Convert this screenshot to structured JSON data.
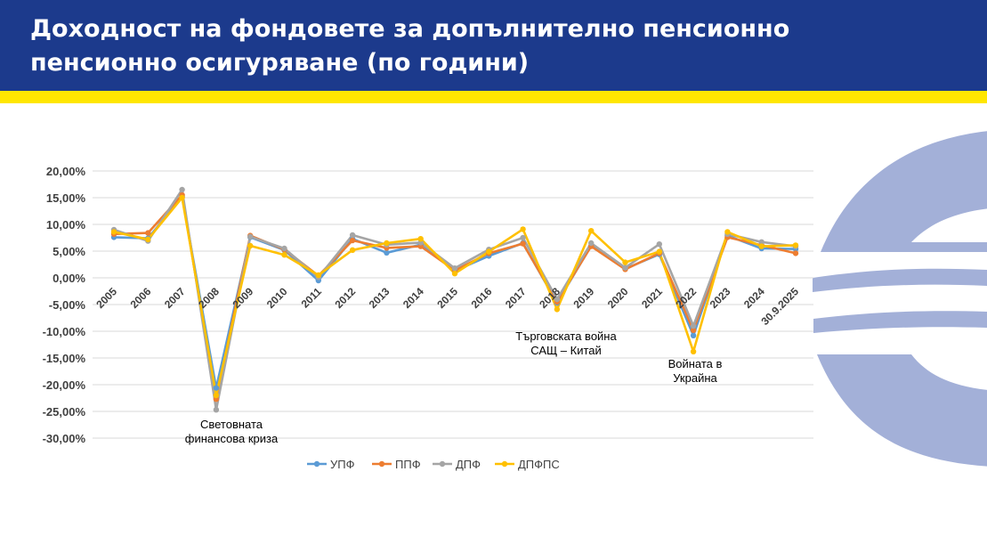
{
  "header": {
    "title_line1": "Доходност на фондовете за допълнително пенсионно",
    "title_line2": "пенсионно осигуряване (по години)"
  },
  "colors": {
    "header_bg": "#1c3a8c",
    "stripe": "#ffe600",
    "logo": "#a3b0d8",
    "gridline": "#d9d9d9"
  },
  "chart_data": {
    "type": "line",
    "title": "",
    "xlabel": "",
    "ylabel": "",
    "ylim": [
      -30,
      20
    ],
    "yticks": [
      20,
      15,
      10,
      5,
      0,
      -5,
      -10,
      -15,
      -20,
      -25,
      -30
    ],
    "ytick_labels": [
      "20,00%",
      "15,00%",
      "10,00%",
      "5,00%",
      "0,00%",
      "-5,00%",
      "-10,00%",
      "-15,00%",
      "-20,00%",
      "-25,00%",
      "-30,00%"
    ],
    "grid": true,
    "legend_position": "bottom",
    "categories": [
      "2005",
      "2006",
      "2007",
      "2008",
      "2009",
      "2010",
      "2011",
      "2012",
      "2013",
      "2014",
      "2015",
      "2016",
      "2017",
      "2018",
      "2019",
      "2020",
      "2021",
      "2022",
      "2023",
      "2024",
      "30.9.2025"
    ],
    "series": [
      {
        "name": "УПФ",
        "color": "#5b9bd5",
        "values": [
          7.6,
          7.4,
          15.2,
          -20.6,
          7.6,
          5.2,
          -0.5,
          7.3,
          4.7,
          6.2,
          1.3,
          4.1,
          6.5,
          -4.7,
          6.0,
          1.7,
          4.4,
          -10.8,
          7.9,
          5.5,
          5.4
        ]
      },
      {
        "name": "ППФ",
        "color": "#ed7d31",
        "values": [
          8.2,
          8.4,
          15.5,
          -22.7,
          7.9,
          5.3,
          0.4,
          7.0,
          5.6,
          5.9,
          1.4,
          4.6,
          6.4,
          -4.5,
          5.9,
          1.6,
          4.6,
          -9.8,
          7.6,
          6.1,
          4.6
        ]
      },
      {
        "name": "ДПФ",
        "color": "#a5a5a5",
        "values": [
          9.0,
          6.9,
          16.5,
          -24.7,
          7.7,
          5.5,
          0.1,
          8.0,
          6.2,
          6.6,
          1.8,
          5.3,
          7.5,
          -4.0,
          6.5,
          1.9,
          6.3,
          -9.0,
          8.2,
          6.7,
          5.9
        ]
      },
      {
        "name": "ДПФПС",
        "color": "#ffc000",
        "values": [
          8.6,
          7.2,
          15.0,
          -22.0,
          6.0,
          4.3,
          0.5,
          5.2,
          6.5,
          7.3,
          0.8,
          4.9,
          9.1,
          -5.9,
          8.8,
          2.9,
          4.9,
          -13.8,
          8.6,
          5.9,
          6.1
        ]
      }
    ],
    "annotations": [
      {
        "lines": [
          "Световната",
          "финансова криза"
        ],
        "category": "2008"
      },
      {
        "lines": [
          "Търговската война",
          "САЩ – Китай"
        ],
        "category": "2018"
      },
      {
        "lines": [
          "Войната в",
          "Украйна"
        ],
        "category": "2022"
      }
    ]
  }
}
